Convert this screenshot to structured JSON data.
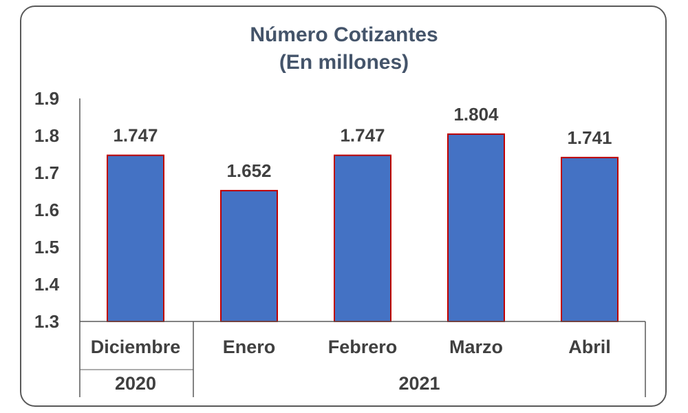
{
  "chart_data": {
    "type": "bar",
    "title": "Número Cotizantes",
    "subtitle": "(En millones)",
    "categories": [
      "Diciembre",
      "Enero",
      "Febrero",
      "Marzo",
      "Abril"
    ],
    "group_labels": [
      {
        "label": "2020",
        "categories": [
          "Diciembre"
        ]
      },
      {
        "label": "2021",
        "categories": [
          "Enero",
          "Febrero",
          "Marzo",
          "Abril"
        ]
      }
    ],
    "values": [
      1.747,
      1.652,
      1.747,
      1.804,
      1.741
    ],
    "data_labels": [
      "1.747",
      "1.652",
      "1.747",
      "1.804",
      "1.741"
    ],
    "ylim": [
      1.3,
      1.9
    ],
    "yticks": [
      "1.3",
      "1.4",
      "1.5",
      "1.6",
      "1.7",
      "1.8",
      "1.9"
    ],
    "grid": false,
    "legend": "none",
    "colors": {
      "bar_fill": "#4472c4",
      "bar_border": "#c00000",
      "title": "#44546a",
      "text": "#404040",
      "axis": "#595959"
    }
  }
}
